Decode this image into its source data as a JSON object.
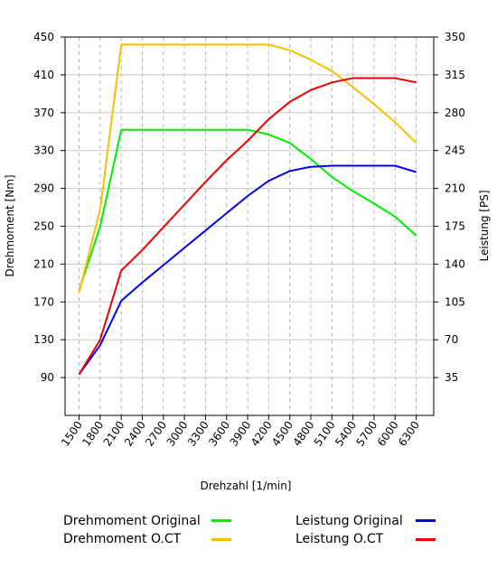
{
  "chart_data": {
    "type": "line",
    "xlabel": "Drehzahl [1/min]",
    "ylabel_left": "Drehmoment [Nm]",
    "ylabel_right": "Leistung [PS]",
    "x_ticks": [
      1500,
      1800,
      2100,
      2400,
      2700,
      3000,
      3300,
      3600,
      3900,
      4200,
      4500,
      4800,
      5100,
      5400,
      5700,
      6000,
      6300
    ],
    "x_tick_labels": [
      "1500",
      "1800",
      "2100",
      "2400",
      "2700",
      "3000",
      "3300",
      "3600",
      "3900",
      "4200",
      "4500",
      "4800",
      "5100",
      "5400",
      "5700",
      "6000",
      "6300"
    ],
    "x_range": [
      1300,
      6550
    ],
    "y_left_range": [
      50,
      450
    ],
    "y_left_ticks": [
      90,
      130,
      170,
      210,
      250,
      290,
      330,
      370,
      410,
      450
    ],
    "y_left_tick_labels": [
      "90",
      "130",
      "170",
      "210",
      "250",
      "290",
      "330",
      "370",
      "410",
      "450"
    ],
    "y_right_range": [
      0,
      350
    ],
    "y_right_ticks": [
      35,
      70,
      105,
      140,
      175,
      210,
      245,
      280,
      315,
      350
    ],
    "y_right_tick_labels": [
      "35",
      "70",
      "105",
      "140",
      "175",
      "210",
      "245",
      "280",
      "315",
      "350"
    ],
    "grid": true,
    "legend_position": "bottom",
    "series": [
      {
        "name": "Drehmoment Original",
        "axis": "left",
        "color": "#00ee00",
        "x": [
          1500,
          1800,
          2100,
          2400,
          2700,
          3000,
          3300,
          3600,
          3900,
          4200,
          4500,
          4800,
          5100,
          5400,
          5700,
          6000,
          6300
        ],
        "y": [
          182,
          250,
          352,
          352,
          352,
          352,
          352,
          352,
          352,
          347,
          338,
          321,
          302,
          287,
          274,
          260,
          240
        ]
      },
      {
        "name": "Drehmoment O.CT",
        "axis": "left",
        "color": "#f5c000",
        "x": [
          1500,
          1800,
          2100,
          2400,
          2700,
          3000,
          3300,
          3600,
          3900,
          4200,
          4500,
          4800,
          5100,
          5400,
          5700,
          6000,
          6300
        ],
        "y": [
          180,
          268,
          442,
          442,
          442,
          442,
          442,
          442,
          442,
          442,
          436,
          426,
          414,
          397,
          379,
          360,
          338
        ]
      },
      {
        "name": "Leistung Original",
        "axis": "right",
        "color": "#0000ee",
        "x": [
          1500,
          1800,
          2100,
          2400,
          2700,
          3000,
          3300,
          3600,
          3900,
          4200,
          4500,
          4800,
          5100,
          5400,
          5700,
          6000,
          6300
        ],
        "y": [
          38,
          65,
          106,
          123,
          139,
          155,
          171,
          187,
          203,
          217,
          226,
          230,
          231,
          231,
          231,
          231,
          225
        ]
      },
      {
        "name": "Leistung O.CT",
        "axis": "right",
        "color": "#ee0000",
        "x": [
          1500,
          1800,
          2100,
          2400,
          2700,
          3000,
          3300,
          3600,
          3900,
          4200,
          4500,
          4800,
          5100,
          5400,
          5700,
          6000,
          6300
        ],
        "y": [
          38,
          70,
          134,
          153,
          174,
          195,
          216,
          236,
          254,
          274,
          290,
          301,
          308,
          312,
          312,
          312,
          308
        ]
      }
    ]
  }
}
